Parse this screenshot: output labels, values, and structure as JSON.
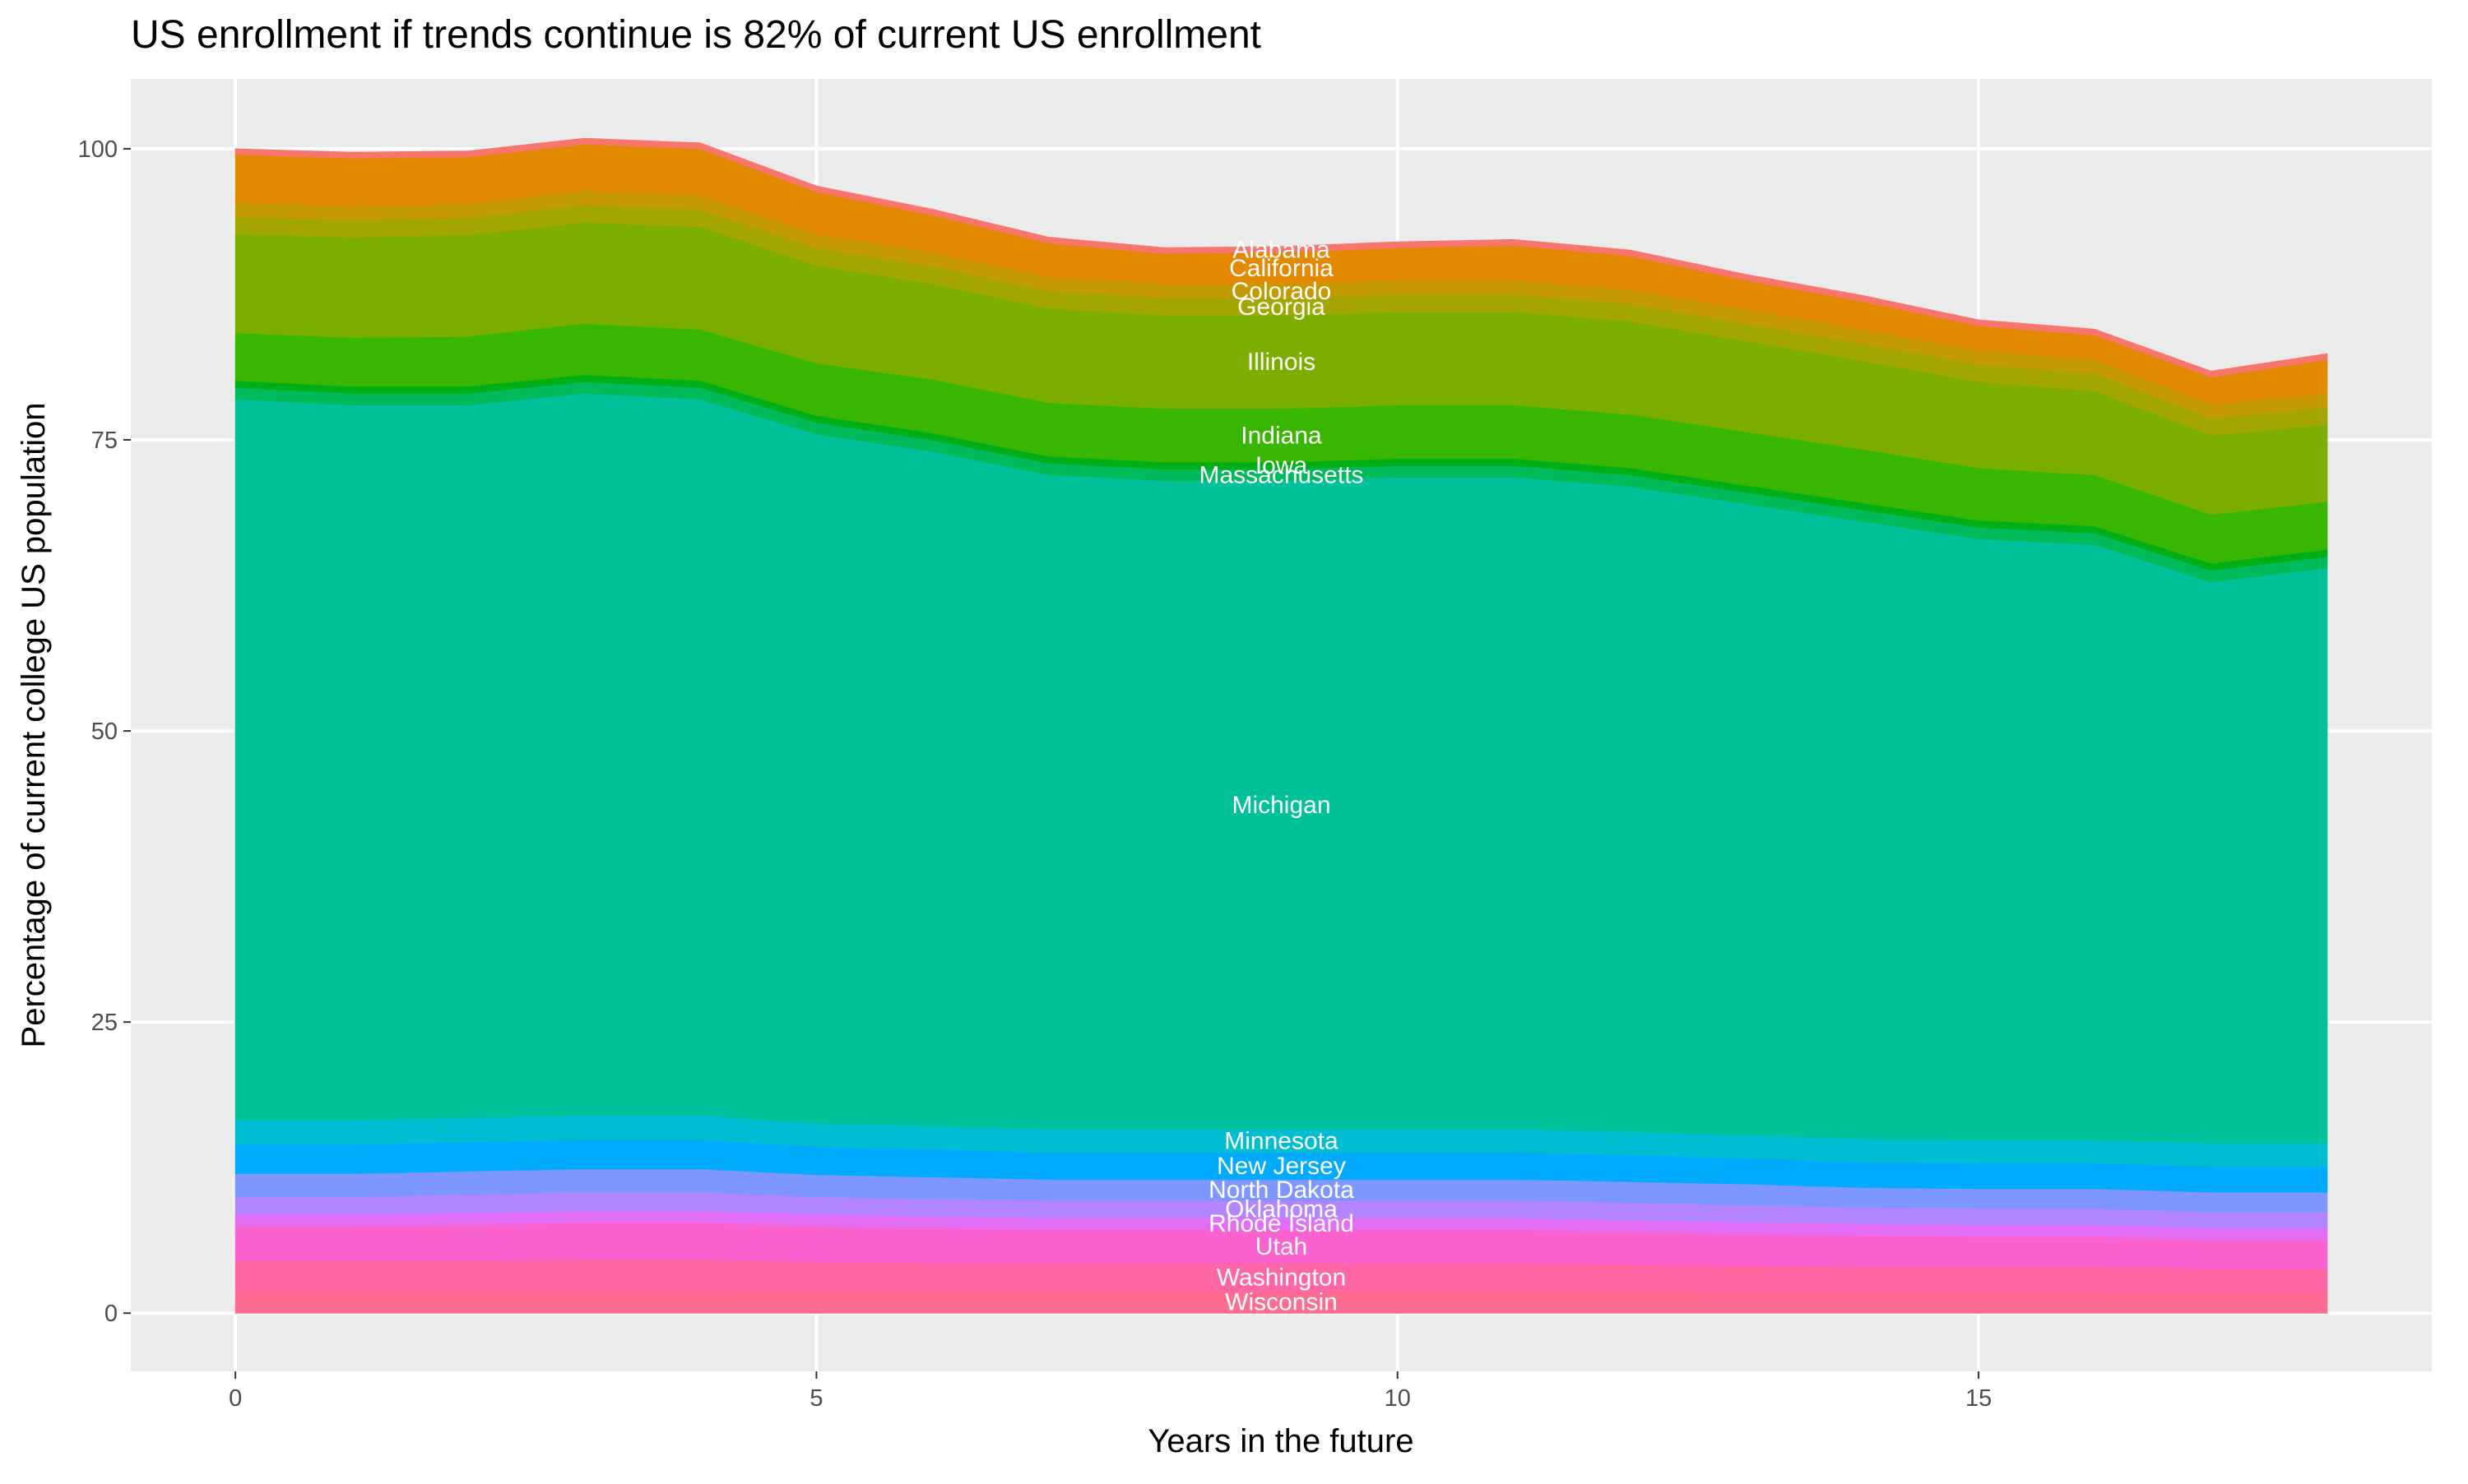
{
  "chart_data": {
    "type": "stacked_area",
    "title": "US enrollment if trends continue is 82% of current US enrollment",
    "x_label": "Years in the future",
    "y_label": "Percentage of current college US population",
    "x": [
      0,
      1,
      2,
      3,
      4,
      5,
      6,
      7,
      8,
      9,
      10,
      11,
      12,
      13,
      14,
      15,
      16,
      17,
      18
    ],
    "xlim": [
      -0.9,
      18.9
    ],
    "xticks": [
      0,
      5,
      10,
      15
    ],
    "ylim": [
      -5,
      106
    ],
    "yticks": [
      0,
      25,
      50,
      75,
      100
    ],
    "grid": true,
    "label_x": 9,
    "series": [
      {
        "name": "Wisconsin",
        "color": "#FF6C91",
        "values": [
          2,
          2,
          2,
          2,
          2,
          1.9,
          1.9,
          1.9,
          1.9,
          1.9,
          1.9,
          1.9,
          1.9,
          1.8,
          1.8,
          1.8,
          1.8,
          1.7,
          1.7
        ]
      },
      {
        "name": "Washington",
        "color": "#FF67A4",
        "values": [
          2.5,
          2.5,
          2.5,
          2.6,
          2.6,
          2.5,
          2.4,
          2.4,
          2.4,
          2.4,
          2.4,
          2.4,
          2.3,
          2.3,
          2.2,
          2.2,
          2.2,
          2.1,
          2.1
        ]
      },
      {
        "name": "Utah",
        "color": "#FA62CF",
        "values": [
          3,
          3,
          3.1,
          3.2,
          3.2,
          3.1,
          3,
          2.9,
          2.9,
          2.9,
          2.9,
          2.9,
          2.8,
          2.7,
          2.7,
          2.6,
          2.6,
          2.5,
          2.5
        ]
      },
      {
        "name": "Rhode Island",
        "color": "#E36EF6",
        "values": [
          1,
          1,
          1,
          1,
          1,
          1,
          1,
          1,
          1,
          1,
          1,
          1,
          1,
          1,
          1,
          1,
          1,
          1,
          1
        ]
      },
      {
        "name": "Oklahoma",
        "color": "#B385FF",
        "values": [
          1.5,
          1.5,
          1.6,
          1.6,
          1.6,
          1.5,
          1.5,
          1.5,
          1.5,
          1.5,
          1.5,
          1.5,
          1.5,
          1.5,
          1.4,
          1.4,
          1.4,
          1.4,
          1.4
        ]
      },
      {
        "name": "North Dakota",
        "color": "#7E96FF",
        "values": [
          2,
          2,
          2,
          2,
          2,
          1.9,
          1.9,
          1.8,
          1.8,
          1.8,
          1.8,
          1.8,
          1.8,
          1.8,
          1.7,
          1.7,
          1.7,
          1.7,
          1.7
        ]
      },
      {
        "name": "New Jersey",
        "color": "#00ABFD",
        "values": [
          2.5,
          2.5,
          2.5,
          2.5,
          2.5,
          2.4,
          2.4,
          2.3,
          2.3,
          2.3,
          2.3,
          2.3,
          2.3,
          2.2,
          2.2,
          2.2,
          2.2,
          2.2,
          2.2
        ]
      },
      {
        "name": "Minnesota",
        "color": "#00BDD2",
        "values": [
          2.1,
          2.1,
          2.1,
          2.1,
          2.1,
          2,
          2,
          2,
          2,
          2,
          2,
          2,
          2,
          2,
          2,
          2,
          2,
          2,
          2
        ]
      },
      {
        "name": "Michigan",
        "color": "#00C19A",
        "values": [
          61.9,
          61.4,
          61.2,
          62,
          61.5,
          59.2,
          57.9,
          56.2,
          55.7,
          55.7,
          56,
          56,
          55.4,
          54.2,
          53,
          51.6,
          51.1,
          48.2,
          49.4
        ]
      },
      {
        "name": "Massachusetts",
        "color": "#00BA5C",
        "values": [
          1,
          1,
          1,
          1,
          1,
          1,
          1,
          1,
          1,
          1,
          1,
          1,
          1,
          1,
          1,
          1,
          1,
          1,
          1
        ]
      },
      {
        "name": "Iowa",
        "color": "#00AE17",
        "values": [
          0.6,
          0.6,
          0.6,
          0.6,
          0.6,
          0.6,
          0.6,
          0.6,
          0.6,
          0.6,
          0.6,
          0.6,
          0.6,
          0.6,
          0.6,
          0.6,
          0.6,
          0.6,
          0.6
        ]
      },
      {
        "name": "Indiana",
        "color": "#39B600",
        "values": [
          4.1,
          4.2,
          4.3,
          4.4,
          4.4,
          4.5,
          4.6,
          4.6,
          4.6,
          4.6,
          4.6,
          4.6,
          4.6,
          4.6,
          4.6,
          4.5,
          4.4,
          4.2,
          4.1
        ]
      },
      {
        "name": "Illinois",
        "color": "#7CAE00",
        "values": [
          8.5,
          8.6,
          8.7,
          8.7,
          8.8,
          8.4,
          8.2,
          8.1,
          8,
          8,
          8,
          8,
          8,
          7.8,
          7.6,
          7.4,
          7.2,
          6.8,
          6.6
        ]
      },
      {
        "name": "Georgia",
        "color": "#A3A500",
        "values": [
          1.5,
          1.5,
          1.5,
          1.5,
          1.5,
          1.5,
          1.5,
          1.5,
          1.5,
          1.5,
          1.5,
          1.5,
          1.5,
          1.5,
          1.5,
          1.5,
          1.5,
          1.5,
          1.5
        ]
      },
      {
        "name": "Colorado",
        "color": "#C49A00",
        "values": [
          1.2,
          1.2,
          1.2,
          1.2,
          1.2,
          1.2,
          1.2,
          1.2,
          1.2,
          1.2,
          1.2,
          1.2,
          1.2,
          1.2,
          1.2,
          1.2,
          1.2,
          1.2,
          1.2
        ]
      },
      {
        "name": "California",
        "color": "#E38900",
        "values": [
          4.1,
          4.1,
          4,
          4,
          4,
          3.6,
          3.2,
          2.9,
          2.6,
          2.7,
          2.8,
          3,
          2.9,
          2.5,
          2.4,
          2.1,
          2.1,
          2.3,
          2.9
        ]
      },
      {
        "name": "Alabama",
        "color": "#F8766D",
        "values": [
          0.5,
          0.5,
          0.5,
          0.5,
          0.5,
          0.5,
          0.5,
          0.5,
          0.5,
          0.5,
          0.5,
          0.5,
          0.5,
          0.5,
          0.5,
          0.5,
          0.5,
          0.5,
          0.5
        ]
      }
    ]
  }
}
